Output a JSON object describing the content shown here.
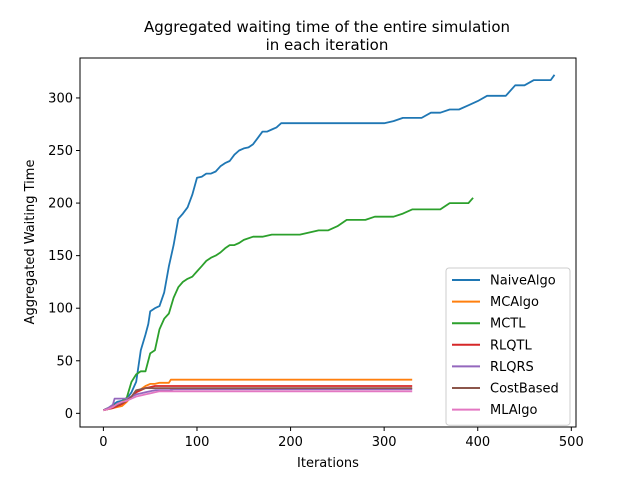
{
  "chart_data": {
    "type": "line",
    "title_lines": [
      "Aggregated waiting time of the entire simulation",
      "in each iteration"
    ],
    "xlabel": "Iterations",
    "ylabel": "Aggregated Waiting Time",
    "xlim": [
      -25,
      505
    ],
    "ylim": [
      -13,
      338
    ],
    "xticks": [
      0,
      100,
      200,
      300,
      400,
      500
    ],
    "yticks": [
      0,
      50,
      100,
      150,
      200,
      250,
      300
    ],
    "grid": false,
    "legend_position": "lower-right",
    "series": [
      {
        "name": "NaiveAlgo",
        "color": "#1f77b4",
        "x": [
          0,
          5,
          10,
          15,
          20,
          25,
          30,
          35,
          40,
          45,
          48,
          50,
          55,
          60,
          65,
          70,
          75,
          80,
          85,
          90,
          95,
          100,
          105,
          110,
          115,
          120,
          125,
          130,
          135,
          140,
          145,
          150,
          155,
          160,
          165,
          170,
          175,
          180,
          185,
          190,
          200,
          250,
          300,
          310,
          320,
          340,
          350,
          360,
          370,
          380,
          390,
          400,
          410,
          420,
          430,
          440,
          450,
          460,
          470,
          478,
          482
        ],
        "y": [
          3,
          5,
          8,
          11,
          12,
          14,
          20,
          30,
          60,
          75,
          85,
          97,
          100,
          102,
          115,
          140,
          160,
          185,
          190,
          196,
          208,
          224,
          225,
          228,
          228,
          230,
          235,
          238,
          240,
          246,
          250,
          252,
          253,
          256,
          262,
          268,
          268,
          270,
          272,
          276,
          276,
          276,
          276,
          278,
          281,
          281,
          286,
          286,
          289,
          289,
          293,
          297,
          302,
          302,
          302,
          312,
          312,
          317,
          317,
          317,
          322
        ]
      },
      {
        "name": "MCAlgo",
        "color": "#ff7f0e",
        "x": [
          0,
          5,
          10,
          15,
          20,
          25,
          30,
          35,
          40,
          45,
          50,
          55,
          60,
          65,
          70,
          72,
          75,
          100,
          200,
          300,
          330
        ],
        "y": [
          3,
          4,
          5,
          6,
          7,
          11,
          16,
          20,
          23,
          26,
          28,
          28,
          29,
          29,
          29,
          32,
          32,
          32,
          32,
          32,
          32
        ]
      },
      {
        "name": "MCTL",
        "color": "#2ca02c",
        "x": [
          0,
          5,
          10,
          15,
          20,
          25,
          30,
          35,
          40,
          45,
          50,
          55,
          60,
          65,
          70,
          75,
          80,
          85,
          90,
          95,
          100,
          105,
          110,
          115,
          120,
          125,
          130,
          135,
          140,
          145,
          150,
          160,
          170,
          180,
          190,
          200,
          210,
          220,
          230,
          240,
          250,
          260,
          270,
          280,
          290,
          300,
          310,
          320,
          330,
          340,
          350,
          360,
          370,
          380,
          390,
          395
        ],
        "y": [
          3,
          5,
          7,
          9,
          11,
          15,
          30,
          37,
          40,
          40,
          57,
          60,
          80,
          90,
          95,
          110,
          120,
          125,
          128,
          130,
          135,
          140,
          145,
          148,
          150,
          153,
          157,
          160,
          160,
          162,
          165,
          168,
          168,
          170,
          170,
          170,
          170,
          172,
          174,
          174,
          178,
          184,
          184,
          184,
          187,
          187,
          187,
          190,
          194,
          194,
          194,
          194,
          200,
          200,
          200,
          205
        ]
      },
      {
        "name": "RLQTL",
        "color": "#d62728",
        "x": [
          0,
          5,
          10,
          15,
          20,
          25,
          30,
          35,
          40,
          45,
          50,
          55,
          60,
          65,
          70,
          75,
          100,
          200,
          300,
          330
        ],
        "y": [
          3,
          4,
          5,
          7,
          9,
          12,
          16,
          20,
          22,
          24,
          25,
          26,
          26,
          26,
          26,
          26,
          26,
          26,
          26,
          26
        ]
      },
      {
        "name": "RLQRS",
        "color": "#9467bd",
        "x": [
          0,
          5,
          10,
          12,
          15,
          20,
          25,
          30,
          35,
          40,
          45,
          50,
          55,
          60,
          65,
          70,
          75,
          100,
          200,
          300,
          330
        ],
        "y": [
          3,
          5,
          8,
          14,
          14,
          14,
          14,
          16,
          18,
          19,
          20,
          21,
          22,
          22,
          22,
          22,
          23,
          23,
          23,
          23,
          23
        ]
      },
      {
        "name": "CostBased",
        "color": "#8c564b",
        "x": [
          0,
          5,
          10,
          15,
          20,
          25,
          30,
          35,
          40,
          45,
          50,
          55,
          60,
          65,
          70,
          75,
          100,
          200,
          300,
          330
        ],
        "y": [
          3,
          4,
          6,
          8,
          10,
          12,
          16,
          22,
          23,
          24,
          24,
          24,
          24,
          24,
          24,
          24,
          24,
          24,
          24,
          24
        ]
      },
      {
        "name": "MLAlgo",
        "color": "#e377c2",
        "x": [
          0,
          5,
          10,
          15,
          20,
          25,
          30,
          35,
          40,
          45,
          50,
          55,
          60,
          65,
          70,
          75,
          100,
          200,
          300,
          330
        ],
        "y": [
          3,
          4,
          6,
          9,
          11,
          12,
          14,
          16,
          17,
          18,
          19,
          20,
          21,
          21,
          21,
          21,
          21,
          21,
          21,
          21
        ]
      }
    ]
  }
}
